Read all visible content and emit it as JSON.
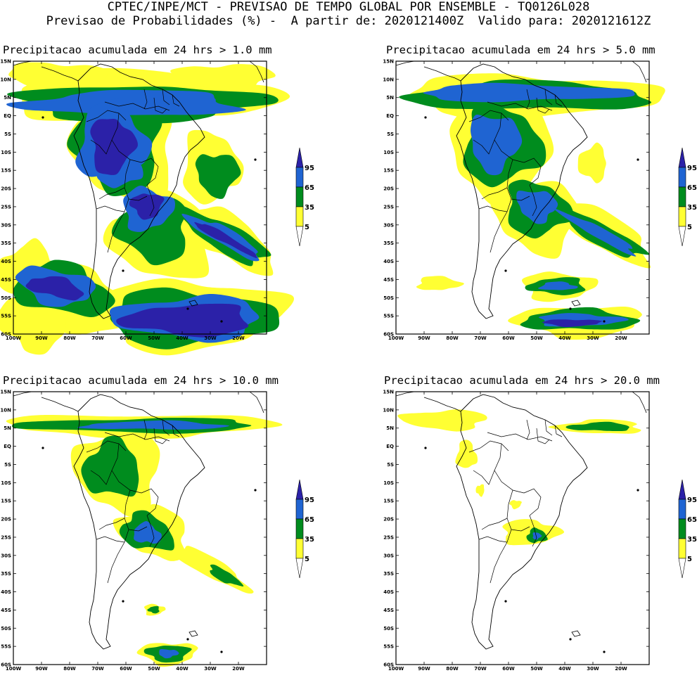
{
  "header": {
    "line1": "CPTEC/INPE/MCT - PREVISAO DE TEMPO GLOBAL POR ENSEMBLE - TQ0126L028",
    "line2": "Previsao de Probabilidades (%) -  A partir de: 2020121400Z  Valido para: 2020121612Z"
  },
  "axes": {
    "lat_labels": [
      "15N",
      "10N",
      "5N",
      "EQ",
      "5S",
      "10S",
      "15S",
      "20S",
      "25S",
      "30S",
      "35S",
      "40S",
      "45S",
      "50S",
      "55S",
      "60S"
    ],
    "lon_labels": [
      "100W",
      "90W",
      "80W",
      "70W",
      "60W",
      "50W",
      "40W",
      "30W",
      "20W"
    ]
  },
  "legend": {
    "levels": [
      "5",
      "35",
      "65",
      "95"
    ],
    "colors": [
      "#ffff33",
      "#008c1e",
      "#1f64d2",
      "#2b21a8"
    ]
  },
  "panels": [
    {
      "title": "Precipitacao acumulada em 24 hrs > 1.0 mm",
      "threshold_mm": 1.0
    },
    {
      "title": "Precipitacao acumulada em 24 hrs > 5.0 mm",
      "threshold_mm": 5.0
    },
    {
      "title": "Precipitacao acumulada em 24 hrs > 10.0 mm",
      "threshold_mm": 10.0
    },
    {
      "title": "Precipitacao acumulada em 24 hrs > 20.0 mm",
      "threshold_mm": 20.0
    }
  ]
}
